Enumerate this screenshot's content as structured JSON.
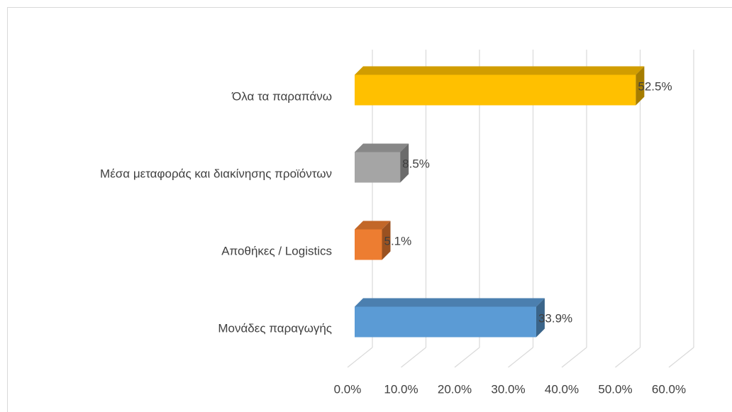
{
  "chart_data": {
    "type": "bar",
    "orientation": "horizontal",
    "three_d": true,
    "categories": [
      "Μονάδες παραγωγής",
      "Αποθήκες / Logistics",
      "Μέσα μεταφοράς και διακίνησης προϊόντων",
      "Όλα τα παραπάνω"
    ],
    "values": [
      33.9,
      5.1,
      8.5,
      52.5
    ],
    "value_labels": [
      "33.9%",
      "5.1%",
      "8.5%",
      "52.5%"
    ],
    "colors": [
      "#5b9bd5",
      "#ed7d31",
      "#a5a5a5",
      "#ffc000"
    ],
    "xlim": [
      0,
      60
    ],
    "xticks": [
      {
        "value": 0,
        "label": "0.0%"
      },
      {
        "value": 10,
        "label": "10.0%"
      },
      {
        "value": 20,
        "label": "20.0%"
      },
      {
        "value": 30,
        "label": "30.0%"
      },
      {
        "value": 40,
        "label": "40.0%"
      },
      {
        "value": 50,
        "label": "50.0%"
      },
      {
        "value": 60,
        "label": "60.0%"
      }
    ],
    "grid": true
  }
}
